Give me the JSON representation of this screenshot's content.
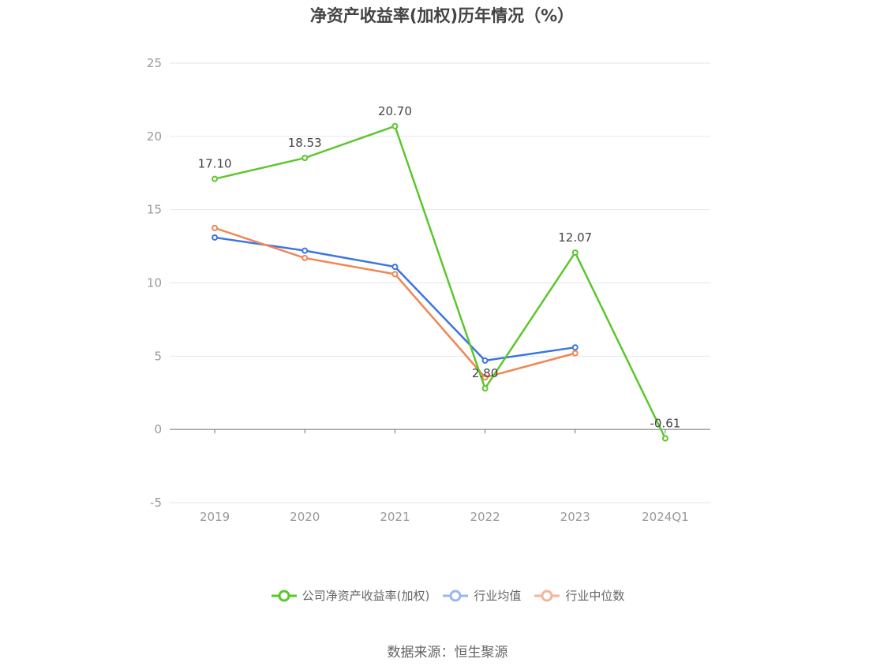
{
  "chart_data": {
    "type": "line",
    "title": "净资产收益率(加权)历年情况（%）",
    "categories": [
      "2019",
      "2020",
      "2021",
      "2022",
      "2023",
      "2024Q1"
    ],
    "ylim": [
      -5,
      25
    ],
    "yticks": [
      -5,
      0,
      5,
      10,
      15,
      20,
      25
    ],
    "grid": true,
    "legend_position": "bottom",
    "series": [
      {
        "name": "公司净资产收益率(加权)",
        "color": "#5bc72c",
        "values": [
          17.1,
          18.53,
          20.7,
          2.8,
          12.07,
          -0.61
        ],
        "labels": [
          "17.10",
          "18.53",
          "20.70",
          "2.80",
          "12.07",
          "-0.61"
        ]
      },
      {
        "name": "行业均值",
        "color": "#3b75e0",
        "values": [
          13.1,
          12.2,
          11.1,
          4.7,
          5.6,
          null
        ]
      },
      {
        "name": "行业中位数",
        "color": "#f08654",
        "values": [
          13.75,
          11.7,
          10.6,
          3.55,
          5.2,
          null
        ]
      }
    ]
  },
  "legend": [
    {
      "label": "公司净资产收益率(加权)",
      "color": "#5bc72c",
      "marker_stroke": "#5bc72c"
    },
    {
      "label": "行业均值",
      "color": "#3b75e0",
      "marker_stroke": "#9ab8ee"
    },
    {
      "label": "行业中位数",
      "color": "#f08654",
      "marker_stroke": "#f5b59a"
    }
  ],
  "source": "数据来源：恒生聚源"
}
